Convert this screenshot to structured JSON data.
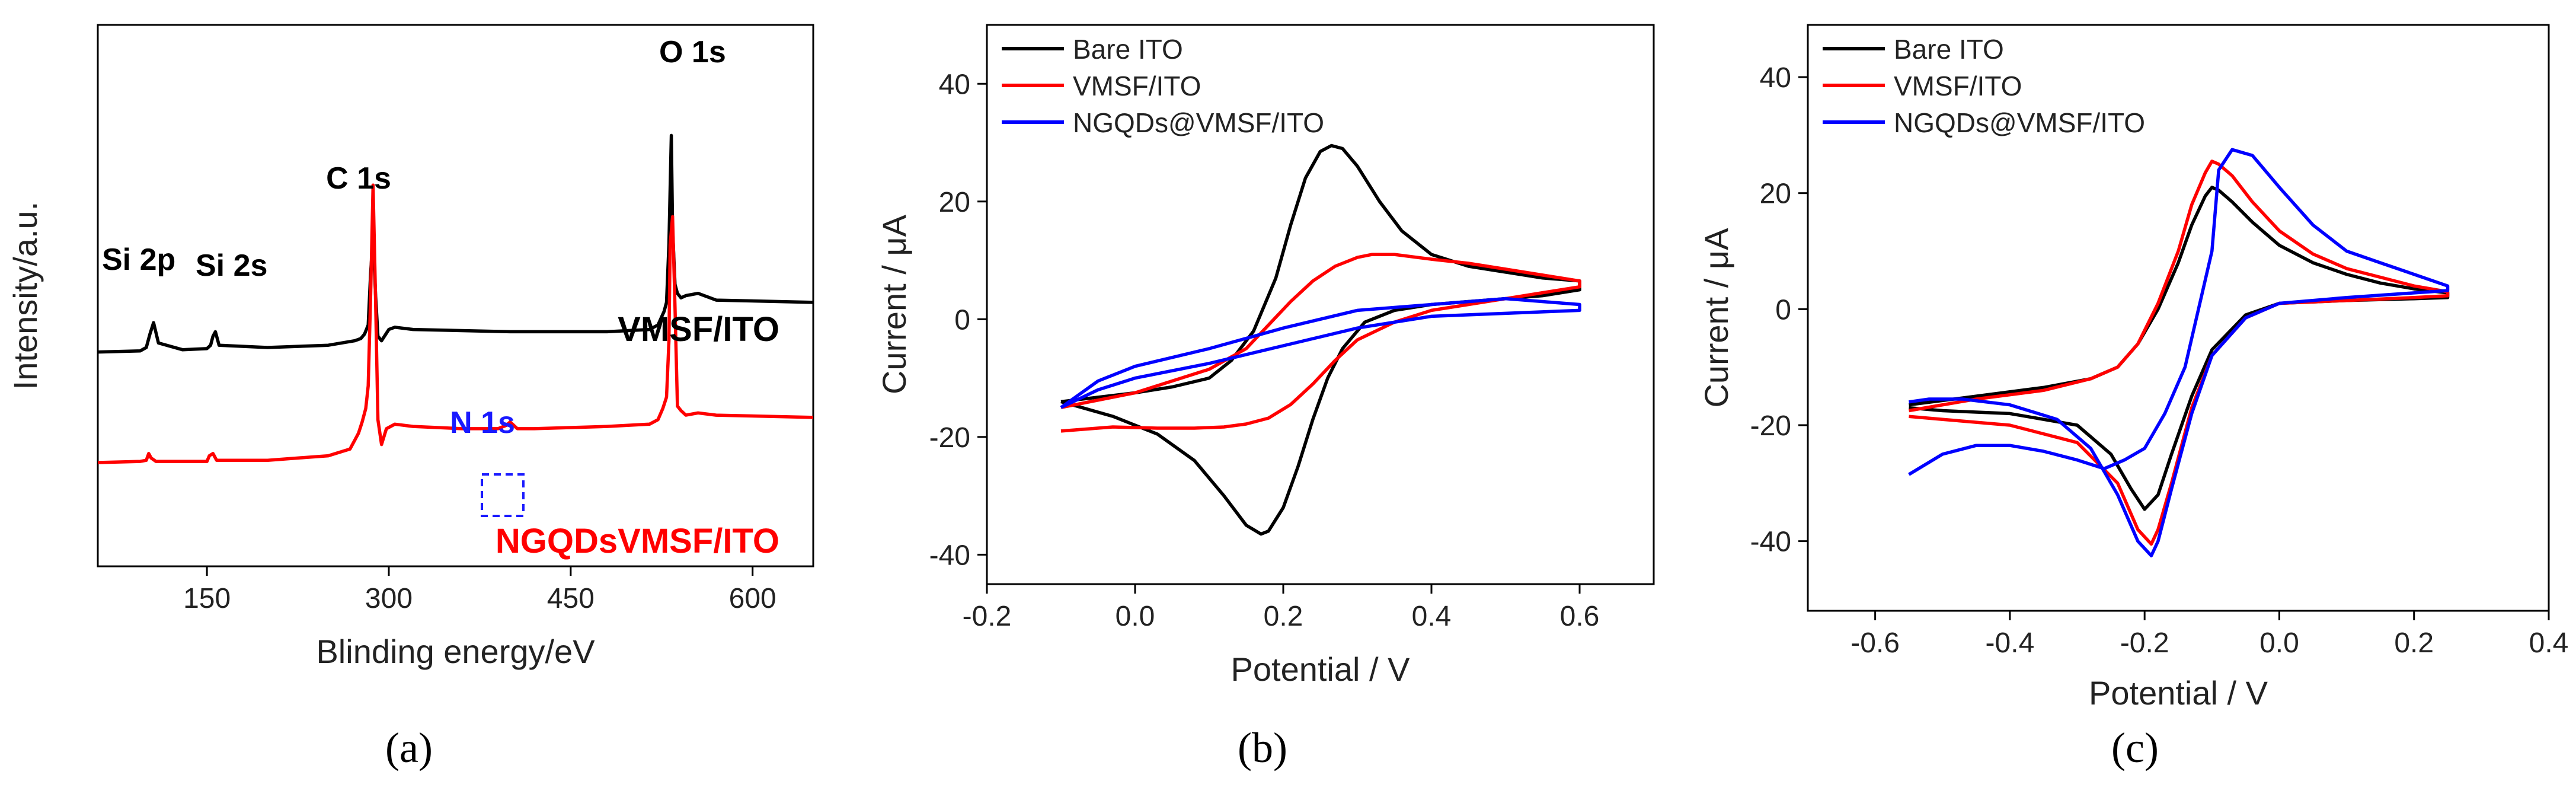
{
  "chart_data": [
    {
      "panel": "(a)",
      "type": "line",
      "xlabel": "Blinding energy/eV",
      "ylabel": "Intensity/a.u.",
      "xlim": [
        60,
        650
      ],
      "xticks": [
        150,
        300,
        450,
        600
      ],
      "yticks": [],
      "series": [
        {
          "name": "VMSF/ITO",
          "color": "#000000",
          "x": [
            60,
            95,
            100,
            103,
            106,
            110,
            130,
            150,
            153,
            155,
            157,
            160,
            200,
            250,
            272,
            277,
            280,
            283,
            285,
            287,
            289,
            291,
            294,
            300,
            305,
            320,
            400,
            480,
            515,
            522,
            527,
            529,
            531,
            532,
            533,
            534,
            536,
            538,
            541,
            545,
            555,
            570,
            650
          ],
          "y": [
            20,
            21,
            24,
            36,
            46,
            28,
            22,
            23,
            26,
            34,
            38,
            26,
            24,
            26,
            30,
            32,
            36,
            44,
            90,
            122,
            72,
            34,
            30,
            40,
            42,
            40,
            38,
            38,
            40,
            44,
            56,
            64,
            116,
            165,
            212,
            130,
            80,
            72,
            68,
            70,
            72,
            66,
            64
          ]
        },
        {
          "name": "NGQDsVMSF/ITO",
          "color": "#ff0000",
          "x": [
            60,
            95,
            100,
            102,
            104,
            108,
            130,
            150,
            152,
            155,
            158,
            200,
            250,
            268,
            272,
            275,
            278,
            281,
            283,
            285,
            287,
            289,
            291,
            294,
            298,
            305,
            320,
            360,
            390,
            397,
            400,
            403,
            406,
            420,
            480,
            515,
            522,
            526,
            529,
            531,
            532,
            534,
            536,
            538,
            541,
            545,
            555,
            570,
            650
          ],
          "y": [
            -78,
            -77,
            -76,
            -70,
            -74,
            -77,
            -77,
            -77,
            -72,
            -70,
            -76,
            -76,
            -72,
            -66,
            -58,
            -52,
            -42,
            -30,
            -10,
            70,
            168,
            70,
            -40,
            -62,
            -48,
            -44,
            -46,
            -48,
            -48,
            -45,
            -42,
            -45,
            -48,
            -48,
            -46,
            -44,
            -40,
            -30,
            -20,
            30,
            115,
            140,
            60,
            -28,
            -32,
            -36,
            -34,
            -36,
            -38
          ]
        }
      ],
      "annotations": [
        {
          "text": "O 1s",
          "color": "#000000"
        },
        {
          "text": "C 1s",
          "color": "#000000"
        },
        {
          "text": "Si 2p",
          "color": "#000000"
        },
        {
          "text": "Si 2s",
          "color": "#000000"
        },
        {
          "text": "N 1s",
          "color": "#1a1aff"
        }
      ],
      "series_labels": [
        "VMSF/ITO",
        "NGQDsVMSF/ITO"
      ]
    },
    {
      "panel": "(b)",
      "type": "line",
      "xlabel": "Potential / V",
      "ylabel": "Current / μA",
      "xlim": [
        -0.2,
        0.7
      ],
      "ylim": [
        -45,
        50
      ],
      "xticks": [
        -0.2,
        0.0,
        0.2,
        0.4,
        0.6
      ],
      "xtick_labels": [
        "-0.2",
        "0.0",
        "0.2",
        "0.4",
        "0.6"
      ],
      "yticks": [
        -40,
        -20,
        0,
        20,
        40
      ],
      "legend": "top-left",
      "series": [
        {
          "name": "Bare ITO",
          "color": "#000000",
          "x": [
            -0.1,
            0.0,
            0.05,
            0.1,
            0.13,
            0.16,
            0.19,
            0.21,
            0.23,
            0.25,
            0.265,
            0.28,
            0.3,
            0.33,
            0.36,
            0.4,
            0.45,
            0.5,
            0.55,
            0.6,
            0.6,
            0.55,
            0.5,
            0.45,
            0.4,
            0.35,
            0.31,
            0.28,
            0.26,
            0.24,
            0.22,
            0.2,
            0.18,
            0.17,
            0.15,
            0.12,
            0.08,
            0.03,
            -0.03,
            -0.1
          ],
          "y": [
            -14,
            -12.5,
            -11.5,
            -10,
            -7,
            -2,
            7,
            16,
            24,
            28.5,
            29.5,
            29,
            26,
            20,
            15,
            11,
            9,
            8,
            7,
            6.5,
            5,
            4,
            3.5,
            3,
            2.5,
            1.5,
            -0.5,
            -5,
            -10,
            -17,
            -25,
            -32,
            -36,
            -36.5,
            -35,
            -30,
            -24,
            -19.5,
            -16.5,
            -14
          ]
        },
        {
          "name": "VMSF/ITO",
          "color": "#ff0000",
          "x": [
            -0.1,
            0.0,
            0.05,
            0.1,
            0.15,
            0.18,
            0.21,
            0.24,
            0.27,
            0.3,
            0.32,
            0.35,
            0.4,
            0.45,
            0.5,
            0.55,
            0.6,
            0.6,
            0.55,
            0.5,
            0.45,
            0.4,
            0.35,
            0.3,
            0.27,
            0.24,
            0.21,
            0.18,
            0.15,
            0.12,
            0.08,
            0.03,
            -0.03,
            -0.1
          ],
          "y": [
            -15,
            -12.5,
            -10.5,
            -8.5,
            -5,
            -1,
            3,
            6.5,
            9,
            10.5,
            11,
            11,
            10.2,
            9.5,
            8.5,
            7.5,
            6.5,
            5.5,
            4.5,
            3.5,
            2.5,
            1.5,
            -0.5,
            -3.5,
            -7,
            -11,
            -14.5,
            -16.8,
            -17.8,
            -18.3,
            -18.5,
            -18.5,
            -18.3,
            -19
          ]
        },
        {
          "name": "NGQDs@VMSF/ITO",
          "color": "#0000ff",
          "x": [
            -0.1,
            -0.05,
            0.0,
            0.1,
            0.2,
            0.3,
            0.4,
            0.5,
            0.6,
            0.6,
            0.5,
            0.4,
            0.3,
            0.2,
            0.1,
            0.0,
            -0.05,
            -0.1
          ],
          "y": [
            -15,
            -10.5,
            -8,
            -5,
            -1.5,
            1.5,
            2.5,
            3.5,
            2.5,
            1.5,
            1,
            0.5,
            -1.5,
            -4.5,
            -7.5,
            -10,
            -12,
            -15
          ]
        }
      ]
    },
    {
      "panel": "(c)",
      "type": "line",
      "xlabel": "Potential / V",
      "ylabel": "Current / μA",
      "xlim": [
        -0.7,
        0.4
      ],
      "ylim": [
        -52,
        49
      ],
      "xticks": [
        -0.6,
        -0.4,
        -0.2,
        0.0,
        0.2,
        0.4
      ],
      "xtick_labels": [
        "-0.6",
        "-0.4",
        "-0.2",
        "0.0",
        "0.2",
        "0.4"
      ],
      "yticks": [
        -40,
        -20,
        0,
        20,
        40
      ],
      "legend": "top-left",
      "series": [
        {
          "name": "Bare ITO",
          "color": "#000000",
          "x": [
            -0.55,
            -0.45,
            -0.35,
            -0.28,
            -0.24,
            -0.21,
            -0.18,
            -0.15,
            -0.13,
            -0.11,
            -0.1,
            -0.09,
            -0.07,
            -0.04,
            0.0,
            0.05,
            0.1,
            0.15,
            0.2,
            0.25,
            0.25,
            0.2,
            0.1,
            0.0,
            -0.05,
            -0.1,
            -0.13,
            -0.16,
            -0.18,
            -0.2,
            -0.22,
            -0.25,
            -0.3,
            -0.4,
            -0.5,
            -0.55
          ],
          "y": [
            -16.5,
            -15,
            -13.5,
            -12,
            -10,
            -6,
            0,
            8,
            14.5,
            19.5,
            21,
            20.5,
            18.5,
            15,
            11,
            8,
            6,
            4.5,
            3.5,
            2.8,
            2,
            1.8,
            1.5,
            1,
            -1,
            -7,
            -15,
            -25,
            -32,
            -34.5,
            -31,
            -25,
            -20,
            -18,
            -17.5,
            -17
          ]
        },
        {
          "name": "VMSF/ITO",
          "color": "#ff0000",
          "x": [
            -0.55,
            -0.45,
            -0.35,
            -0.28,
            -0.24,
            -0.21,
            -0.18,
            -0.15,
            -0.13,
            -0.11,
            -0.1,
            -0.09,
            -0.07,
            -0.04,
            0.0,
            0.05,
            0.1,
            0.15,
            0.2,
            0.25,
            0.25,
            0.2,
            0.1,
            0.0,
            -0.05,
            -0.1,
            -0.13,
            -0.16,
            -0.18,
            -0.19,
            -0.21,
            -0.24,
            -0.3,
            -0.4,
            -0.5,
            -0.55
          ],
          "y": [
            -17.5,
            -15.5,
            -14,
            -12,
            -10,
            -6,
            1,
            10,
            18,
            23.5,
            25.5,
            25,
            23,
            18.5,
            13.5,
            9.5,
            7,
            5.5,
            4,
            3,
            2.3,
            2,
            1.5,
            1,
            -1.5,
            -8,
            -17,
            -30,
            -38,
            -40.5,
            -38,
            -30,
            -23,
            -20,
            -19,
            -18.5
          ]
        },
        {
          "name": "NGQDs@VMSF/ITO",
          "color": "#0000ff",
          "x": [
            -0.55,
            -0.5,
            -0.45,
            -0.4,
            -0.35,
            -0.3,
            -0.26,
            -0.23,
            -0.2,
            -0.17,
            -0.14,
            -0.12,
            -0.1,
            -0.09,
            -0.07,
            -0.04,
            0.0,
            0.05,
            0.1,
            0.15,
            0.2,
            0.25,
            0.25,
            0.2,
            0.1,
            0.0,
            -0.05,
            -0.1,
            -0.13,
            -0.16,
            -0.18,
            -0.19,
            -0.21,
            -0.24,
            -0.28,
            -0.33,
            -0.4,
            -0.47,
            -0.52,
            -0.55
          ],
          "y": [
            -28.5,
            -25,
            -23.5,
            -23.5,
            -24.5,
            -26,
            -27.5,
            -26,
            -24,
            -18,
            -10,
            0,
            10,
            24,
            27.5,
            26.5,
            21,
            14.5,
            10,
            8,
            6,
            4,
            3.2,
            2.8,
            2,
            1,
            -1.5,
            -8,
            -18,
            -31,
            -40,
            -42.5,
            -40,
            -32,
            -24,
            -19,
            -16.5,
            -15.5,
            -15.5,
            -16
          ]
        }
      ]
    }
  ],
  "panel_labels": [
    "(a)",
    "(b)",
    "(c)"
  ]
}
